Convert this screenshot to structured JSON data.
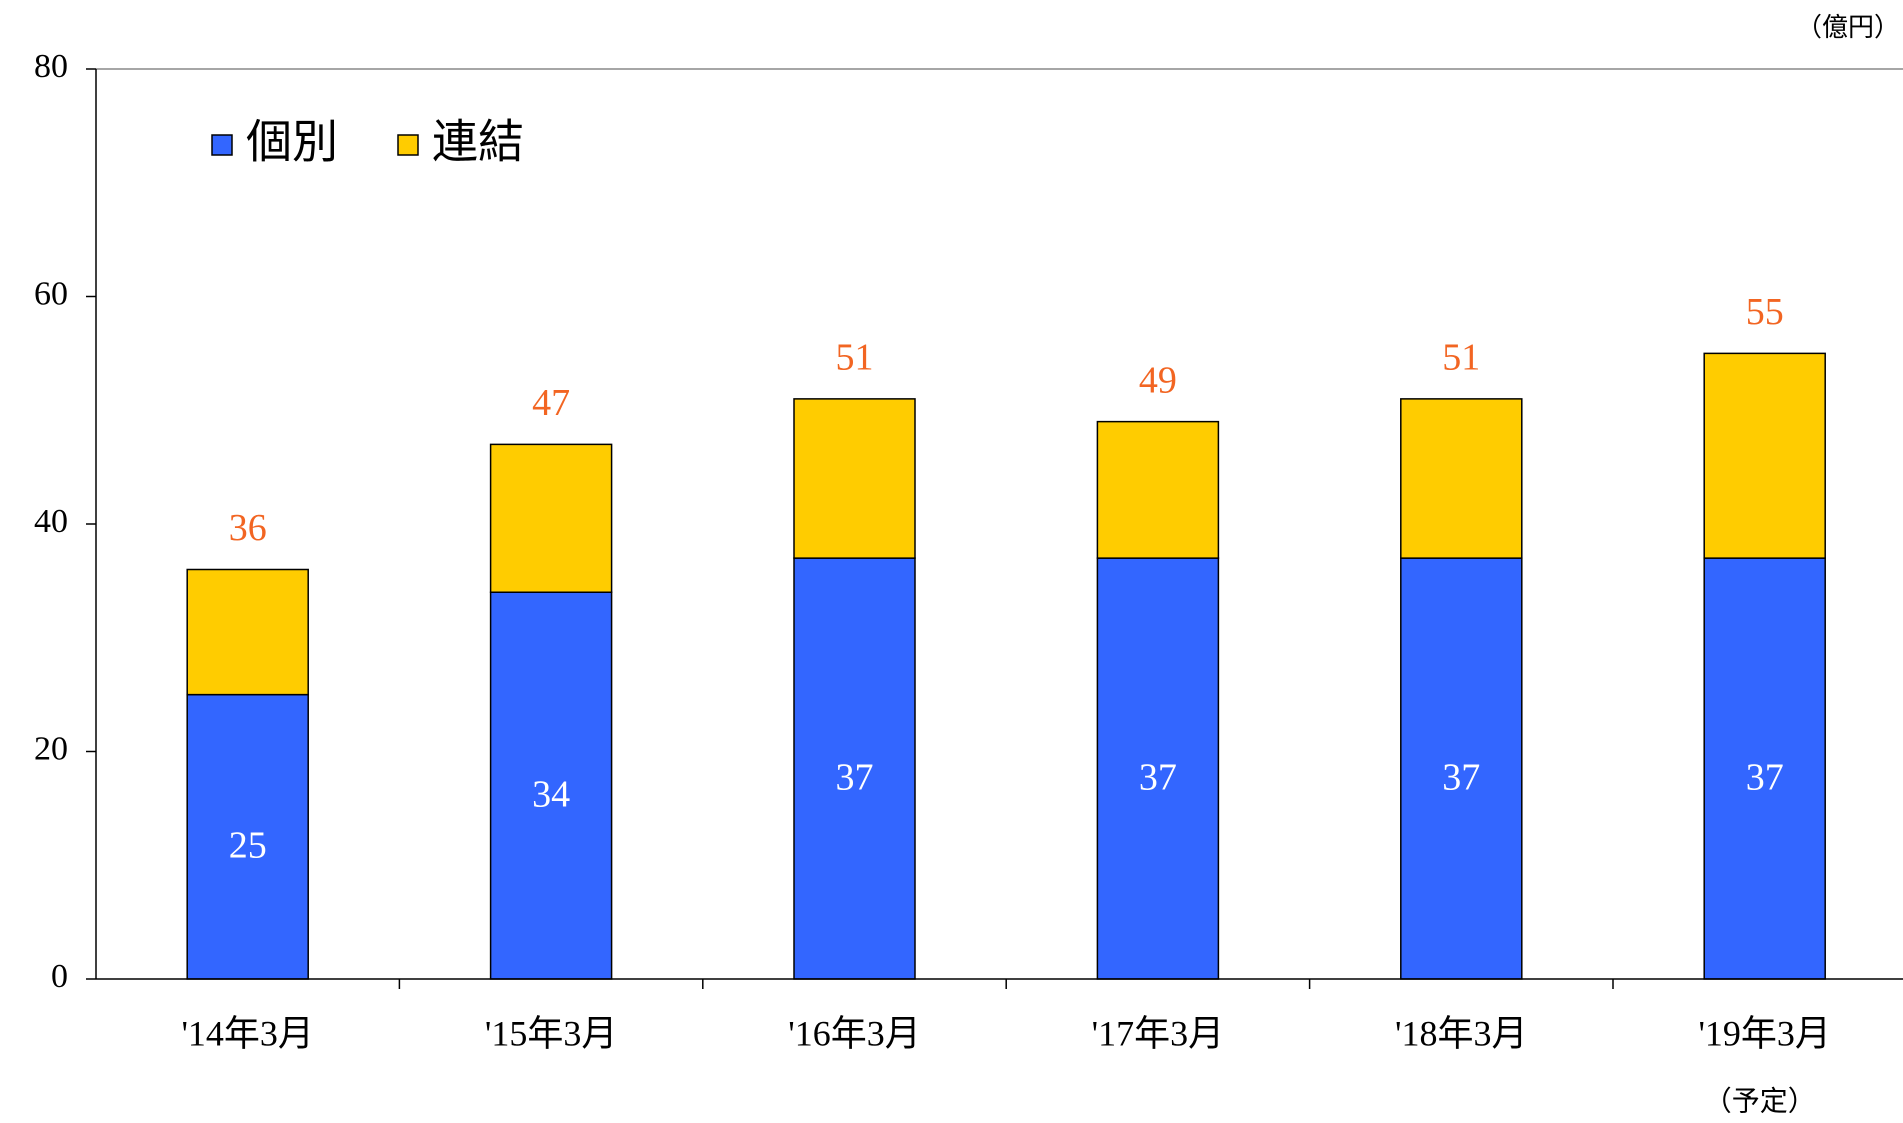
{
  "chart_data": {
    "type": "stacked_bar",
    "unit_label": "（億円）",
    "categories": [
      "'14年3月",
      "'15年3月",
      "'16年3月",
      "'17年3月",
      "'18年3月",
      "'19年3月"
    ],
    "category_notes": [
      null,
      null,
      null,
      null,
      null,
      "（予定）"
    ],
    "series": [
      {
        "name": "個別",
        "color": "#3366ff",
        "values": [
          25,
          34,
          37,
          37,
          37,
          37
        ]
      },
      {
        "name": "連結",
        "color": "#ffcc00",
        "values": [
          11,
          13,
          14,
          12,
          14,
          18
        ]
      }
    ],
    "totals": [
      36,
      47,
      51,
      49,
      51,
      55
    ],
    "total_label_color": "#f26522",
    "ylim": [
      0,
      80
    ],
    "yticks": [
      0,
      20,
      40,
      60,
      80
    ],
    "legend": "top-left"
  }
}
